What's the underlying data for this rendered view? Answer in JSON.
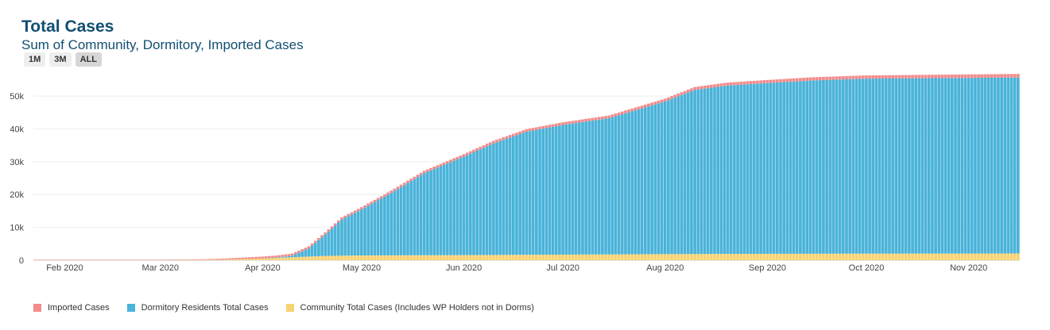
{
  "header": {
    "title": "Total Cases",
    "subtitle": "Sum of Community, Dormitory, Imported Cases"
  },
  "range_buttons": [
    {
      "label": "1M",
      "active": false
    },
    {
      "label": "3M",
      "active": false
    },
    {
      "label": "ALL",
      "active": true
    }
  ],
  "legend": [
    {
      "label": "Imported Cases",
      "color": "#f28b8b"
    },
    {
      "label": "Dormitory Residents Total Cases",
      "color": "#4ab3d9"
    },
    {
      "label": "Community Total Cases (Includes WP Holders not in Dorms)",
      "color": "#f9d271"
    }
  ],
  "chart_data": {
    "type": "bar",
    "stacked": true,
    "x_start": "2020-01-23",
    "x_end": "2020-11-16",
    "x_ticks": [
      {
        "label": "Feb 2020",
        "date": "2020-02-01"
      },
      {
        "label": "Mar 2020",
        "date": "2020-03-01"
      },
      {
        "label": "Apr 2020",
        "date": "2020-04-01"
      },
      {
        "label": "May 2020",
        "date": "2020-05-01"
      },
      {
        "label": "Jun 2020",
        "date": "2020-06-01"
      },
      {
        "label": "Jul 2020",
        "date": "2020-07-01"
      },
      {
        "label": "Aug 2020",
        "date": "2020-08-01"
      },
      {
        "label": "Sep 2020",
        "date": "2020-09-01"
      },
      {
        "label": "Oct 2020",
        "date": "2020-10-01"
      },
      {
        "label": "Nov 2020",
        "date": "2020-11-01"
      }
    ],
    "y_ticks": [
      {
        "label": "0",
        "value": 0
      },
      {
        "label": "10k",
        "value": 10000
      },
      {
        "label": "20k",
        "value": 20000
      },
      {
        "label": "30k",
        "value": 30000
      },
      {
        "label": "40k",
        "value": 40000
      },
      {
        "label": "50k",
        "value": 50000
      }
    ],
    "ylim": [
      0,
      58000
    ],
    "grid": true,
    "legend_position": "bottom-left",
    "series": [
      {
        "name": "Community Total Cases (Includes WP Holders not in Dorms)",
        "color": "#f9d271",
        "points": [
          [
            "2020-01-23",
            0
          ],
          [
            "2020-03-01",
            0
          ],
          [
            "2020-03-20",
            150
          ],
          [
            "2020-04-01",
            500
          ],
          [
            "2020-04-10",
            900
          ],
          [
            "2020-04-20",
            1300
          ],
          [
            "2020-05-01",
            1450
          ],
          [
            "2020-06-01",
            1550
          ],
          [
            "2020-07-01",
            1700
          ],
          [
            "2020-08-01",
            1850
          ],
          [
            "2020-09-01",
            1950
          ],
          [
            "2020-10-01",
            2000
          ],
          [
            "2020-11-16",
            2050
          ]
        ]
      },
      {
        "name": "Dormitory Residents Total Cases",
        "color": "#4ab3d9",
        "points": [
          [
            "2020-01-23",
            0
          ],
          [
            "2020-03-25",
            0
          ],
          [
            "2020-04-01",
            0
          ],
          [
            "2020-04-05",
            100
          ],
          [
            "2020-04-10",
            500
          ],
          [
            "2020-04-15",
            2500
          ],
          [
            "2020-04-20",
            6500
          ],
          [
            "2020-04-25",
            11000
          ],
          [
            "2020-05-01",
            14000
          ],
          [
            "2020-05-10",
            19000
          ],
          [
            "2020-05-20",
            25000
          ],
          [
            "2020-06-01",
            30000
          ],
          [
            "2020-06-10",
            34000
          ],
          [
            "2020-06-20",
            37500
          ],
          [
            "2020-07-01",
            39500
          ],
          [
            "2020-07-15",
            41500
          ],
          [
            "2020-08-01",
            46500
          ],
          [
            "2020-08-10",
            50000
          ],
          [
            "2020-08-20",
            51300
          ],
          [
            "2020-09-01",
            52000
          ],
          [
            "2020-09-15",
            52800
          ],
          [
            "2020-10-01",
            53300
          ],
          [
            "2020-11-16",
            53600
          ]
        ]
      },
      {
        "name": "Imported Cases",
        "color": "#f28b8b",
        "points": [
          [
            "2020-01-23",
            10
          ],
          [
            "2020-02-01",
            15
          ],
          [
            "2020-03-01",
            60
          ],
          [
            "2020-03-15",
            200
          ],
          [
            "2020-03-25",
            450
          ],
          [
            "2020-04-01",
            600
          ],
          [
            "2020-05-01",
            700
          ],
          [
            "2020-06-01",
            750
          ],
          [
            "2020-07-01",
            800
          ],
          [
            "2020-08-01",
            850
          ],
          [
            "2020-09-01",
            950
          ],
          [
            "2020-10-01",
            1000
          ],
          [
            "2020-11-16",
            1100
          ]
        ]
      }
    ]
  }
}
